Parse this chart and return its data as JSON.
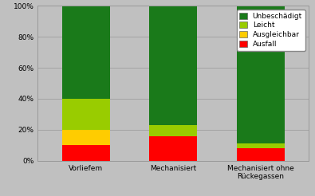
{
  "categories": [
    "Vorliefem",
    "Mechanisiert",
    "Mechanisiert ohne\nRückegassen"
  ],
  "series": {
    "Ausfall": [
      10,
      16,
      8
    ],
    "Ausgleichbar": [
      10,
      0,
      0
    ],
    "Leicht": [
      20,
      7,
      3
    ],
    "Unbeschädigt": [
      60,
      77,
      89
    ]
  },
  "colors": {
    "Unbeschädigt": "#1a7a1a",
    "Leicht": "#99cc00",
    "Ausgleichbar": "#ffcc00",
    "Ausfall": "#ff0000"
  },
  "legend_labels": [
    "Unbeschädigt",
    "Leicht",
    "Ausgleichbar",
    "Ausfall"
  ],
  "ylim": [
    0,
    100
  ],
  "yticks": [
    0,
    20,
    40,
    60,
    80,
    100
  ],
  "ytick_labels": [
    "0%",
    "20%",
    "40%",
    "60%",
    "80%",
    "100%"
  ],
  "background_color": "#c0c0c0",
  "plot_bg_color": "#c0c0c0",
  "bar_width": 0.55,
  "grid_color": "#999999",
  "legend_fontsize": 6.5,
  "tick_fontsize": 6.5,
  "label_fontsize": 6.5
}
